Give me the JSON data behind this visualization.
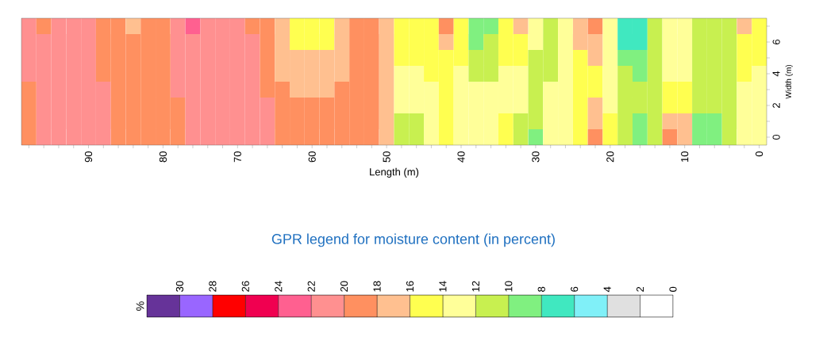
{
  "chart_data": {
    "type": "heatmap",
    "xlabel": "Length (m)",
    "ylabel": "Width (m)",
    "legend_title": "GPR legend for moisture content (in percent)",
    "clabel": "%",
    "categories": [
      null,
      null,
      null,
      null,
      "90",
      null,
      null,
      null,
      null,
      "80",
      null,
      null,
      null,
      null,
      "70",
      null,
      null,
      null,
      null,
      "60",
      null,
      null,
      null,
      null,
      "50",
      null,
      null,
      null,
      null,
      "40",
      null,
      null,
      null,
      null,
      "30",
      null,
      null,
      null,
      null,
      "20",
      null,
      null,
      null,
      null,
      "10",
      null,
      null,
      null,
      null,
      "0"
    ],
    "y_categories": [
      null,
      "6",
      null,
      "4",
      null,
      "2",
      null,
      "0"
    ],
    "cells": [
      [
        21,
        19,
        21,
        21,
        21,
        19,
        19,
        17,
        19,
        19,
        21,
        23,
        21,
        21,
        21,
        19,
        19,
        17,
        15,
        15,
        15,
        17,
        19,
        19,
        17,
        15,
        15,
        15,
        19,
        15,
        9,
        9,
        15,
        17,
        13,
        11,
        13,
        17,
        19,
        13,
        7,
        7,
        11,
        13,
        13,
        11,
        11,
        11,
        17,
        15
      ],
      [
        21,
        21,
        21,
        21,
        21,
        19,
        19,
        19,
        19,
        19,
        21,
        21,
        21,
        21,
        21,
        21,
        19,
        17,
        15,
        15,
        15,
        17,
        19,
        19,
        17,
        15,
        15,
        15,
        17,
        15,
        9,
        11,
        15,
        15,
        13,
        11,
        13,
        17,
        17,
        13,
        7,
        7,
        11,
        13,
        13,
        11,
        11,
        11,
        15,
        15
      ],
      [
        21,
        21,
        21,
        21,
        21,
        19,
        19,
        19,
        19,
        19,
        21,
        21,
        21,
        21,
        21,
        21,
        19,
        17,
        17,
        17,
        17,
        17,
        19,
        19,
        17,
        15,
        15,
        15,
        15,
        15,
        11,
        11,
        15,
        15,
        11,
        11,
        13,
        15,
        17,
        13,
        9,
        9,
        11,
        13,
        13,
        11,
        11,
        11,
        15,
        15
      ],
      [
        21,
        21,
        21,
        21,
        21,
        19,
        19,
        19,
        19,
        19,
        21,
        21,
        21,
        21,
        21,
        21,
        19,
        17,
        17,
        17,
        17,
        17,
        19,
        19,
        17,
        13,
        13,
        15,
        15,
        13,
        11,
        11,
        13,
        13,
        11,
        11,
        13,
        15,
        15,
        13,
        11,
        9,
        11,
        13,
        13,
        11,
        11,
        11,
        15,
        13
      ],
      [
        19,
        21,
        21,
        21,
        21,
        21,
        19,
        19,
        19,
        19,
        21,
        21,
        21,
        21,
        21,
        21,
        19,
        19,
        17,
        17,
        17,
        19,
        19,
        19,
        17,
        13,
        13,
        13,
        15,
        13,
        13,
        13,
        13,
        13,
        11,
        13,
        13,
        15,
        15,
        13,
        11,
        11,
        11,
        15,
        15,
        11,
        11,
        11,
        13,
        13
      ],
      [
        19,
        21,
        21,
        21,
        21,
        21,
        19,
        19,
        19,
        19,
        19,
        21,
        21,
        21,
        21,
        21,
        21,
        19,
        19,
        19,
        19,
        19,
        19,
        19,
        17,
        13,
        13,
        13,
        15,
        13,
        13,
        13,
        13,
        13,
        11,
        13,
        13,
        15,
        17,
        13,
        11,
        11,
        11,
        15,
        15,
        11,
        11,
        11,
        13,
        13
      ],
      [
        19,
        21,
        21,
        21,
        21,
        21,
        19,
        19,
        19,
        19,
        19,
        21,
        21,
        21,
        21,
        21,
        21,
        19,
        19,
        19,
        19,
        19,
        19,
        19,
        17,
        11,
        11,
        13,
        15,
        13,
        13,
        13,
        15,
        11,
        11,
        13,
        13,
        15,
        17,
        15,
        11,
        9,
        11,
        17,
        17,
        9,
        9,
        11,
        13,
        13
      ],
      [
        19,
        21,
        21,
        21,
        21,
        21,
        19,
        19,
        19,
        19,
        19,
        21,
        21,
        21,
        21,
        21,
        21,
        19,
        19,
        19,
        19,
        19,
        19,
        19,
        17,
        11,
        11,
        13,
        15,
        13,
        13,
        13,
        15,
        11,
        9,
        13,
        13,
        15,
        19,
        15,
        11,
        9,
        11,
        19,
        17,
        9,
        9,
        11,
        13,
        13
      ]
    ],
    "clim": [
      0,
      32
    ],
    "cticks": [
      30,
      28,
      26,
      24,
      22,
      20,
      18,
      16,
      14,
      12,
      10,
      8,
      6,
      4,
      2,
      0
    ],
    "colors": [
      "#ffffff",
      "#e0e0e0",
      "#80f0f8",
      "#40e8c0",
      "#80f080",
      "#c8f050",
      "#ffff99",
      "#ffff50",
      "#ffc090",
      "#ff9060",
      "#ff9090",
      "#ff6090",
      "#f00050",
      "#ff0000",
      "#9966ff",
      "#663399"
    ]
  }
}
